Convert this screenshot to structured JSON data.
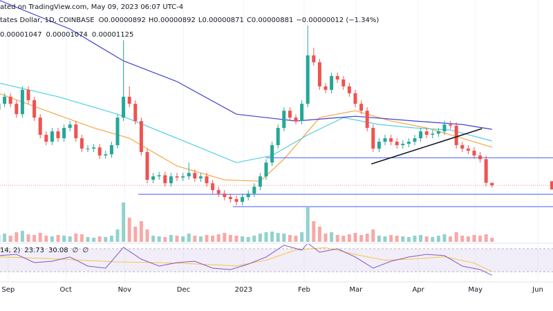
{
  "chart_data": {
    "type": "candlestick",
    "title": "ated on TradingView.com, May 09, 2023 06:07 UTC-4",
    "symbol": "tates Dollar, 1D, COINBASE",
    "ohlc_labels": [
      "O",
      "H",
      "L",
      "C"
    ],
    "change": "−0.00000012 (−1.34%)",
    "up_color": "#26a69a",
    "down_color": "#ef5350",
    "xlim": [
      0.23,
      93.26
    ],
    "ylim": [
      7.55e-06,
      1.598e-05
    ],
    "xticks": [
      {
        "value": 1.6,
        "label": "Sep"
      },
      {
        "value": 11.3,
        "label": "Oct"
      },
      {
        "value": 21.2,
        "label": "Nov"
      },
      {
        "value": 31.1,
        "label": "Dec"
      },
      {
        "value": 41.2,
        "label": "2023"
      },
      {
        "value": 51.4,
        "label": "Feb"
      },
      {
        "value": 60.1,
        "label": "Mar"
      },
      {
        "value": 70.6,
        "label": "Apr"
      },
      {
        "value": 80.2,
        "label": "May"
      },
      {
        "value": 90.7,
        "label": "Jun"
      }
    ],
    "open": [
      1.21e-05,
      1.236e-05,
      1.267e-05,
      1.236e-05,
      1.191e-05,
      1.297e-05,
      1.252e-05,
      1.176e-05,
      1.101e-05,
      1.071e-05,
      1.116e-05,
      1.086e-05,
      1.131e-05,
      1.146e-05,
      1.086e-05,
      1.041e-05,
      1.041e-05,
      1.046e-05,
      1.011e-05,
      1.016e-05,
      1.056e-05,
      1.176e-05,
      1.267e-05,
      1.236e-05,
      1.161e-05,
      1.026e-05,
      9.05e-06,
      9.2e-06,
      9.25e-06,
      8.9e-06,
      9.2e-06,
      9.15e-06,
      9.2e-06,
      9.35e-06,
      9.11e-06,
      9.2e-06,
      8.9e-06,
      8.6e-06,
      8.45e-06,
      8.3e-06,
      8.21e-06,
      8.09e-06,
      8.3e-06,
      8.45e-06,
      8.75e-06,
      9.2e-06,
      9.8e-06,
      1.056e-05,
      1.131e-05,
      1.206e-05,
      1.176e-05,
      1.161e-05,
      1.236e-05,
      1.447e-05,
      1.417e-05,
      1.312e-05,
      1.297e-05,
      1.357e-05,
      1.342e-05,
      1.312e-05,
      1.282e-05,
      1.236e-05,
      1.206e-05,
      1.131e-05,
      1.041e-05,
      1.071e-05,
      1.086e-05,
      1.071e-05,
      1.056e-05,
      1.062e-05,
      1.071e-05,
      1.086e-05,
      1.116e-05,
      1.101e-05,
      1.106e-05,
      1.116e-05,
      1.146e-05,
      1.141e-05,
      1.056e-05,
      1.041e-05,
      1.032e-05,
      1.011e-05,
      9.95e-06,
      8.92e-06
    ],
    "high": [
      1.251e-05,
      1.282e-05,
      1.282e-05,
      1.251e-05,
      1.312e-05,
      1.312e-05,
      1.267e-05,
      1.191e-05,
      1.116e-05,
      1.131e-05,
      1.131e-05,
      1.146e-05,
      1.161e-05,
      1.161e-05,
      1.101e-05,
      1.056e-05,
      1.061e-05,
      1.061e-05,
      1.031e-05,
      1.071e-05,
      1.191e-05,
      1.513e-05,
      1.312e-05,
      1.251e-05,
      1.176e-05,
      1.041e-05,
      9.35e-06,
      9.4e-06,
      9.4e-06,
      9.35e-06,
      9.35e-06,
      9.35e-06,
      9.8e-06,
      9.5e-06,
      9.35e-06,
      9.35e-06,
      9.05e-06,
      8.75e-06,
      8.6e-06,
      8.45e-06,
      8.36e-06,
      8.45e-06,
      8.6e-06,
      8.9e-06,
      9.35e-06,
      9.95e-06,
      1.071e-05,
      1.146e-05,
      1.221e-05,
      1.221e-05,
      1.191e-05,
      1.251e-05,
      1.577e-05,
      1.48e-05,
      1.432e-05,
      1.327e-05,
      1.372e-05,
      1.372e-05,
      1.357e-05,
      1.327e-05,
      1.297e-05,
      1.251e-05,
      1.221e-05,
      1.146e-05,
      1.086e-05,
      1.101e-05,
      1.101e-05,
      1.086e-05,
      1.077e-05,
      1.086e-05,
      1.101e-05,
      1.131e-05,
      1.131e-05,
      1.121e-05,
      1.131e-05,
      1.161e-05,
      1.161e-05,
      1.156e-05,
      1.071e-05,
      1.056e-05,
      1.047e-05,
      1.026e-05,
      1.01e-05,
      8.92e-06
    ],
    "low": [
      1.195e-05,
      1.221e-05,
      1.221e-05,
      1.176e-05,
      1.176e-05,
      1.237e-05,
      1.161e-05,
      1.086e-05,
      1.056e-05,
      1.056e-05,
      1.071e-05,
      1.071e-05,
      1.116e-05,
      1.071e-05,
      1.026e-05,
      1.026e-05,
      1.026e-05,
      9.96e-06,
      9.96e-06,
      1.001e-05,
      1.041e-05,
      1.161e-05,
      1.221e-05,
      1.146e-05,
      1.011e-05,
      8.9e-06,
      8.9e-06,
      9.05e-06,
      8.75e-06,
      8.75e-06,
      9e-06,
      9e-06,
      9.05e-06,
      8.96e-06,
      8.96e-06,
      8.75e-06,
      8.45e-06,
      8.3e-06,
      8.15e-06,
      8.06e-06,
      7.94e-06,
      7.94e-06,
      8.15e-06,
      8.3e-06,
      8.6e-06,
      9.05e-06,
      9.65e-06,
      1.041e-05,
      1.116e-05,
      1.161e-05,
      1.146e-05,
      1.146e-05,
      1.221e-05,
      1.402e-05,
      1.297e-05,
      1.282e-05,
      1.282e-05,
      1.327e-05,
      1.297e-05,
      1.267e-05,
      1.221e-05,
      1.191e-05,
      1.116e-05,
      1.026e-05,
      1.026e-05,
      1.056e-05,
      1.056e-05,
      1.041e-05,
      1.041e-05,
      1.047e-05,
      1.056e-05,
      1.071e-05,
      1.086e-05,
      1.086e-05,
      1.091e-05,
      1.101e-05,
      1.126e-05,
      1.041e-05,
      1.026e-05,
      1.017e-05,
      9.96e-06,
      9.8e-06,
      8.77e-06,
      8.71e-06
    ],
    "close": [
      1.236e-05,
      1.267e-05,
      1.236e-05,
      1.191e-05,
      1.297e-05,
      1.252e-05,
      1.176e-05,
      1.101e-05,
      1.071e-05,
      1.116e-05,
      1.086e-05,
      1.131e-05,
      1.146e-05,
      1.086e-05,
      1.041e-05,
      1.041e-05,
      1.046e-05,
      1.011e-05,
      1.016e-05,
      1.056e-05,
      1.176e-05,
      1.267e-05,
      1.236e-05,
      1.161e-05,
      1.026e-05,
      9.05e-06,
      9.2e-06,
      9.25e-06,
      8.9e-06,
      9.2e-06,
      9.15e-06,
      9.2e-06,
      9.35e-06,
      9.11e-06,
      9.2e-06,
      8.9e-06,
      8.6e-06,
      8.45e-06,
      8.3e-06,
      8.21e-06,
      8.09e-06,
      8.3e-06,
      8.45e-06,
      8.75e-06,
      9.2e-06,
      9.8e-06,
      1.056e-05,
      1.131e-05,
      1.206e-05,
      1.176e-05,
      1.161e-05,
      1.236e-05,
      1.447e-05,
      1.417e-05,
      1.312e-05,
      1.297e-05,
      1.357e-05,
      1.342e-05,
      1.312e-05,
      1.282e-05,
      1.236e-05,
      1.206e-05,
      1.131e-05,
      1.041e-05,
      1.071e-05,
      1.086e-05,
      1.071e-05,
      1.056e-05,
      1.062e-05,
      1.071e-05,
      1.086e-05,
      1.116e-05,
      1.101e-05,
      1.106e-05,
      1.116e-05,
      1.146e-05,
      1.141e-05,
      1.056e-05,
      1.041e-05,
      1.032e-05,
      1.011e-05,
      9.95e-06,
      8.92e-06,
      8.81e-06
    ],
    "volume": [
      10,
      12,
      9,
      14,
      16,
      11,
      10,
      13,
      9,
      8,
      10,
      9,
      8,
      12,
      11,
      7,
      6,
      8,
      7,
      9,
      18,
      57,
      35,
      22,
      30,
      18,
      9,
      8,
      7,
      10,
      9,
      8,
      12,
      9,
      8,
      10,
      9,
      11,
      13,
      10,
      9,
      8,
      7,
      9,
      12,
      14,
      15,
      13,
      12,
      10,
      9,
      14,
      50,
      30,
      22,
      12,
      14,
      10,
      9,
      11,
      13,
      10,
      12,
      18,
      9,
      8,
      10,
      9,
      8,
      7,
      9,
      10,
      8,
      7,
      9,
      11,
      8,
      14,
      9,
      8,
      10,
      9,
      11,
      6
    ],
    "volume_ylim": [
      0,
      60
    ],
    "ma": [
      {
        "color": "#f7a544",
        "x": [
          0,
          8,
          16,
          22,
          30,
          38,
          44,
          48,
          54,
          60,
          66,
          72,
          78,
          83
        ],
        "values": [
          1.282e-05,
          1.206e-05,
          1.131e-05,
          1.086e-05,
          9.65e-06,
          9.05e-06,
          8.99e-06,
          9.95e-06,
          1.176e-05,
          1.206e-05,
          1.161e-05,
          1.131e-05,
          1.086e-05,
          1.047e-05
        ]
      },
      {
        "color": "#4dd0e1",
        "x": [
          0,
          10,
          20,
          30,
          40,
          46,
          52,
          58,
          64,
          70,
          76,
          83
        ],
        "values": [
          1.327e-05,
          1.267e-05,
          1.191e-05,
          1.086e-05,
          9.8e-06,
          1.011e-05,
          1.101e-05,
          1.176e-05,
          1.146e-05,
          1.131e-05,
          1.122e-05,
          1.074e-05
        ]
      },
      {
        "color": "#3f3fd0",
        "x": [
          0,
          12,
          21,
          30,
          40,
          50,
          60,
          70,
          78,
          83
        ],
        "values": [
          1.688e-05,
          1.562e-05,
          1.423e-05,
          1.333e-05,
          1.191e-05,
          1.161e-05,
          1.182e-05,
          1.161e-05,
          1.146e-05,
          1.125e-05
        ]
      }
    ],
    "hlines": [
      {
        "value": 1.001e-05,
        "from": 45,
        "color": "#3d5afe"
      },
      {
        "value": 8.42e-06,
        "from": 23.5,
        "color": "#3d5afe"
      },
      {
        "value": 7.88e-06,
        "from": 39.4,
        "color": "#3d5afe"
      }
    ],
    "trendline": {
      "x": [
        62.7,
        81.3
      ],
      "y": [
        9.74e-06,
        1.128e-05
      ],
      "color": "#131722"
    },
    "rsi": {
      "label": "14, 2)",
      "color": "#7e57c2",
      "ylim": [
        0,
        100
      ],
      "band": [
        30,
        70
      ],
      "na": [
        "∅",
        "∅"
      ],
      "x": [
        0,
        3,
        6,
        9,
        12,
        15,
        18,
        21,
        24,
        27,
        30,
        33,
        36,
        39,
        42,
        45,
        48,
        51,
        52,
        54,
        57,
        60,
        63,
        66,
        69,
        72,
        75,
        78,
        81,
        83
      ],
      "values": [
        57.9,
        60.3,
        45.8,
        48.2,
        55.5,
        39.7,
        36.1,
        72.4,
        51.8,
        39.7,
        45.8,
        48.2,
        36.1,
        33.6,
        43.3,
        55.5,
        76.1,
        67.6,
        79.7,
        63.9,
        70,
        55.5,
        36.1,
        48.2,
        55.5,
        60.3,
        57.9,
        39.7,
        33.6,
        23.73
      ],
      "ma": {
        "color": "#f5c542",
        "x": [
          0,
          10,
          20,
          30,
          40,
          45,
          50,
          55,
          60,
          65,
          70,
          75,
          80,
          83
        ],
        "values": [
          56,
          52,
          47,
          45,
          40,
          50,
          68,
          72,
          60,
          50,
          52,
          56,
          45,
          30.08
        ]
      }
    }
  }
}
